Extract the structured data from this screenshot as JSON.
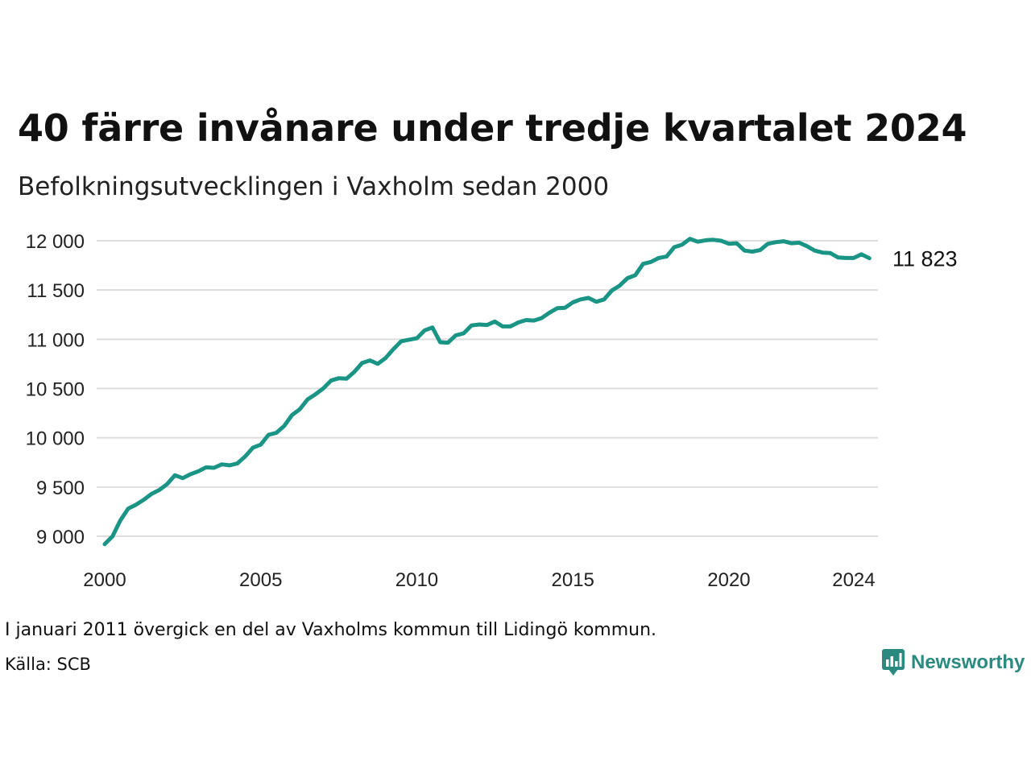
{
  "title": "40 färre invånare under tredje kvartalet 2024",
  "subtitle": "Befolkningsutvecklingen i Vaxholm sedan 2000",
  "note": "I januari 2011 övergick en del av Vaxholms kommun till Lidingö kommun.",
  "source": "Källa: SCB",
  "brand": {
    "name": "Newsworthy",
    "icon": "newsworthy-logo-icon",
    "color": "#2a8a80"
  },
  "colors": {
    "line": "#1a9585",
    "grid": "#dddddd",
    "text": "#111111"
  },
  "chart_data": {
    "type": "line",
    "title": "40 färre invånare under tredje kvartalet 2024",
    "subtitle": "Befolkningsutvecklingen i Vaxholm sedan 2000",
    "xlabel": "",
    "ylabel": "",
    "grid": true,
    "xlim": [
      2000,
      2024.75
    ],
    "ylim": [
      8900,
      12050
    ],
    "x_ticks": [
      2000,
      2005,
      2010,
      2015,
      2020,
      2024
    ],
    "x_tick_labels": [
      "2000",
      "2005",
      "2010",
      "2015",
      "2020",
      "2024"
    ],
    "y_ticks": [
      9000,
      9500,
      10000,
      10500,
      11000,
      11500,
      12000
    ],
    "y_tick_labels": [
      "9 000",
      "9 500",
      "10 000",
      "10 500",
      "11 000",
      "11 500",
      "12 000"
    ],
    "end_label": "11 823",
    "series": [
      {
        "x": [
          2000.0,
          2000.25,
          2000.5,
          2000.75,
          2001.0,
          2001.25,
          2001.5,
          2001.75,
          2002.0,
          2002.25,
          2002.5,
          2002.75,
          2003.0,
          2003.25,
          2003.5,
          2003.75,
          2004.0,
          2004.25,
          2004.5,
          2004.75,
          2005.0,
          2005.25,
          2005.5,
          2005.75,
          2006.0,
          2006.25,
          2006.5,
          2006.75,
          2007.0,
          2007.25,
          2007.5,
          2007.75,
          2008.0,
          2008.25,
          2008.5,
          2008.75,
          2009.0,
          2009.25,
          2009.5,
          2009.75,
          2010.0,
          2010.25,
          2010.5,
          2010.75,
          2011.0,
          2011.25,
          2011.5,
          2011.75,
          2012.0,
          2012.25,
          2012.5,
          2012.75,
          2013.0,
          2013.25,
          2013.5,
          2013.75,
          2014.0,
          2014.25,
          2014.5,
          2014.75,
          2015.0,
          2015.25,
          2015.5,
          2015.75,
          2016.0,
          2016.25,
          2016.5,
          2016.75,
          2017.0,
          2017.25,
          2017.5,
          2017.75,
          2018.0,
          2018.25,
          2018.5,
          2018.75,
          2019.0,
          2019.25,
          2019.5,
          2019.75,
          2020.0,
          2020.25,
          2020.5,
          2020.75,
          2021.0,
          2021.25,
          2021.5,
          2021.75,
          2022.0,
          2022.25,
          2022.5,
          2022.75,
          2023.0,
          2023.25,
          2023.5,
          2023.75,
          2024.0,
          2024.25,
          2024.5
        ],
        "values": [
          8920,
          9000,
          9160,
          9280,
          9320,
          9370,
          9430,
          9470,
          9530,
          9620,
          9590,
          9630,
          9660,
          9700,
          9695,
          9730,
          9720,
          9740,
          9810,
          9900,
          9930,
          10030,
          10050,
          10120,
          10230,
          10290,
          10390,
          10440,
          10500,
          10580,
          10605,
          10600,
          10670,
          10760,
          10785,
          10750,
          10810,
          10900,
          10980,
          10995,
          11010,
          11090,
          11120,
          10970,
          10965,
          11040,
          11060,
          11140,
          11150,
          11145,
          11180,
          11130,
          11130,
          11170,
          11195,
          11190,
          11215,
          11270,
          11315,
          11320,
          11375,
          11405,
          11420,
          11380,
          11405,
          11495,
          11545,
          11620,
          11650,
          11765,
          11785,
          11825,
          11840,
          11935,
          11960,
          12020,
          11990,
          12005,
          12010,
          12000,
          11970,
          11975,
          11900,
          11890,
          11905,
          11970,
          11985,
          11995,
          11975,
          11980,
          11945,
          11900,
          11880,
          11875,
          11830,
          11825,
          11825,
          11863,
          11823
        ]
      }
    ]
  }
}
